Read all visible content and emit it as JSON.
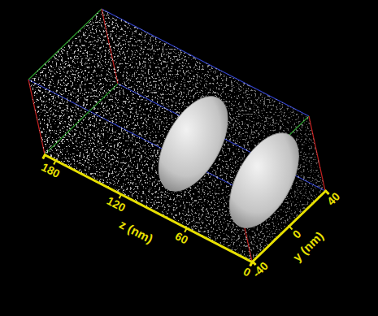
{
  "chart_data": {
    "type": "volume",
    "xlabel": "z (nm)",
    "ylabel": "y (nm)",
    "xlim": [
      0,
      190
    ],
    "xticks": [
      0,
      60,
      120,
      180
    ],
    "ylim": [
      -40,
      40
    ],
    "yticks": [
      -40,
      0,
      40
    ],
    "surface_z": [
      80,
      15
    ]
  }
}
